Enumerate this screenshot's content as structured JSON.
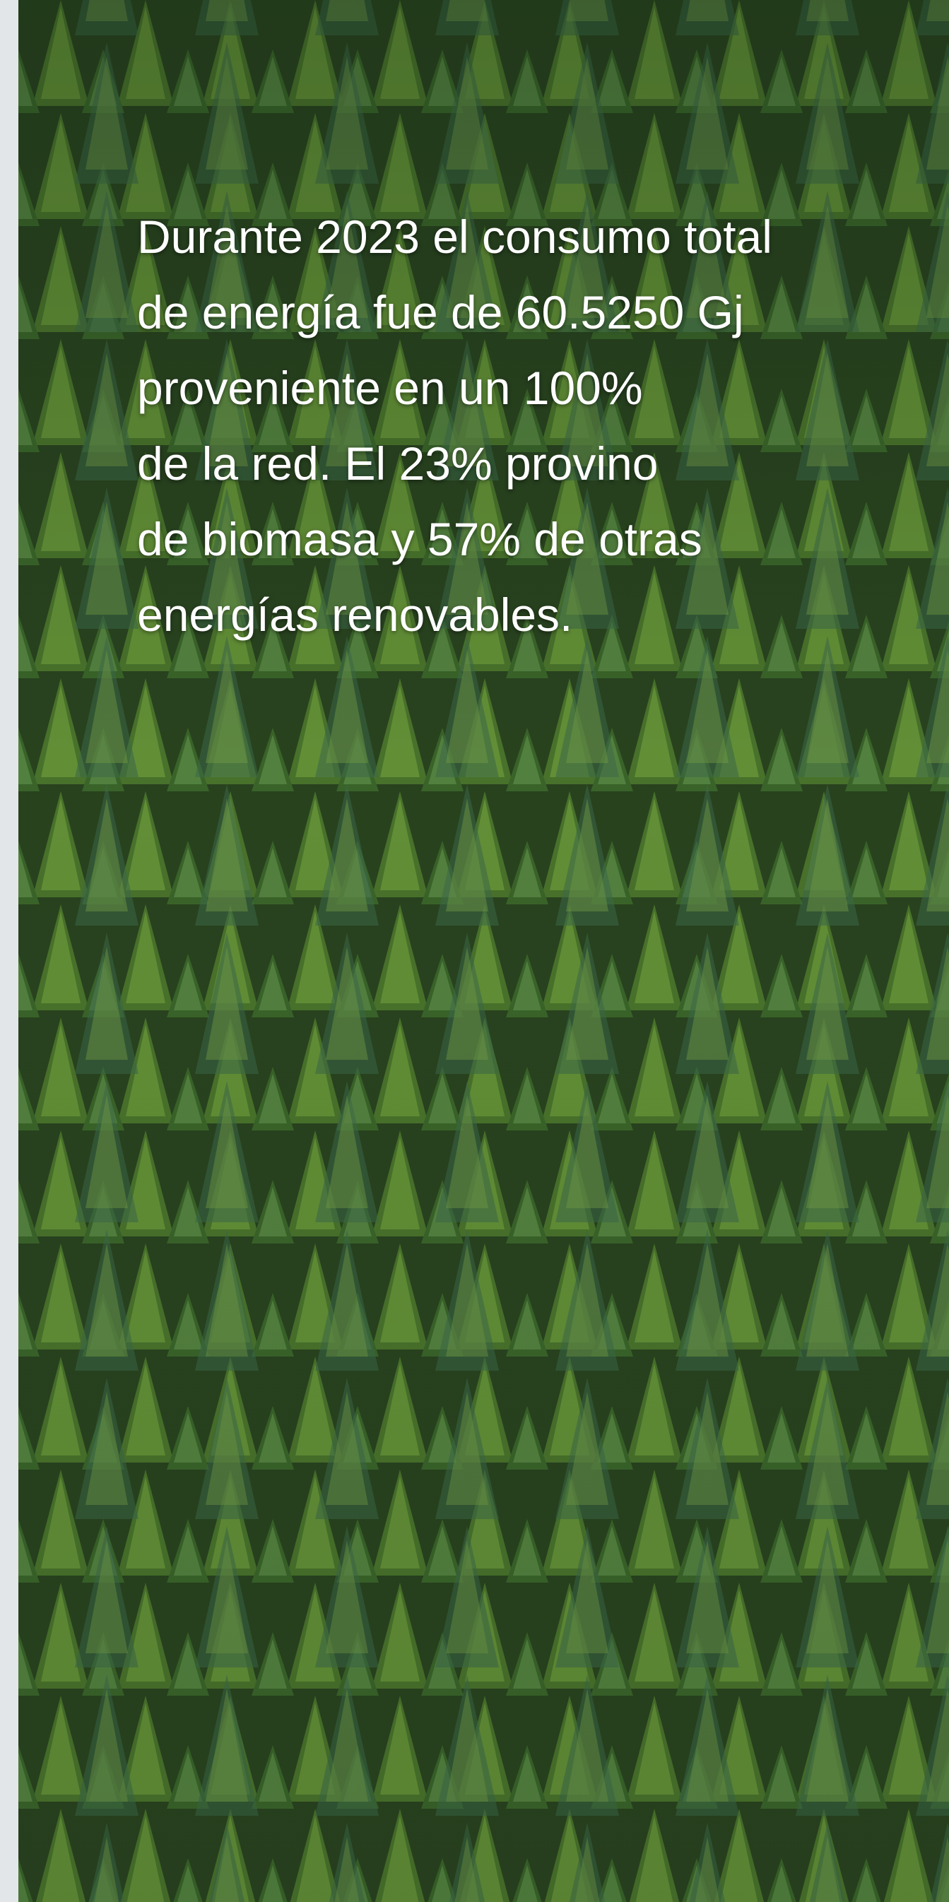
{
  "text": {
    "lines": [
      "Durante 2023 el consumo total",
      "de energía fue de 60.5250 Gj",
      "proveniente en un 100%",
      "de la red. El 23% provino",
      "de biomasa y 57% de otras",
      "energías renovables."
    ]
  }
}
